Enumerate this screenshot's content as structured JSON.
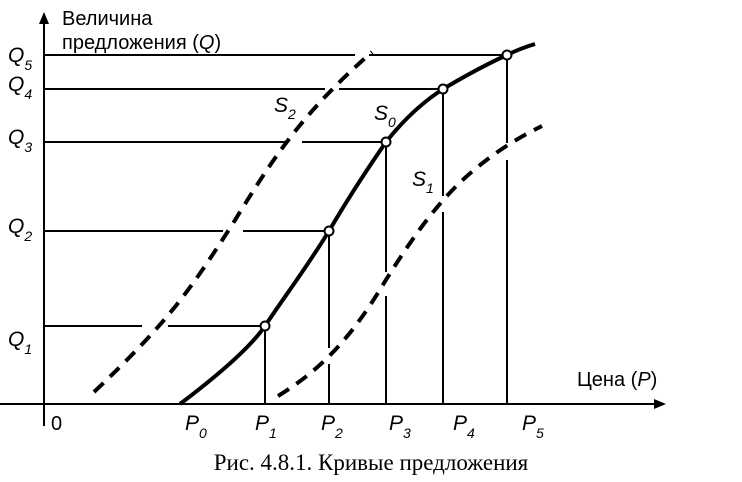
{
  "figure": {
    "y_axis": {
      "line1": "Величина",
      "line2_text": "предложения (",
      "line2_var": "Q",
      "line2_close": ")"
    },
    "x_axis": {
      "text": "Цена (",
      "var": "P",
      "close": ")"
    },
    "origin": "0",
    "q_labels": [
      {
        "base": "Q",
        "sub": "1"
      },
      {
        "base": "Q",
        "sub": "2"
      },
      {
        "base": "Q",
        "sub": "3"
      },
      {
        "base": "Q",
        "sub": "4"
      },
      {
        "base": "Q",
        "sub": "5"
      }
    ],
    "p_labels": [
      {
        "base": "P",
        "sub": "0"
      },
      {
        "base": "P",
        "sub": "1"
      },
      {
        "base": "P",
        "sub": "2"
      },
      {
        "base": "P",
        "sub": "3"
      },
      {
        "base": "P",
        "sub": "4"
      },
      {
        "base": "P",
        "sub": "5"
      }
    ],
    "curves": [
      {
        "base": "S",
        "sub": "2",
        "style": "dashed"
      },
      {
        "base": "S",
        "sub": "0",
        "style": "solid"
      },
      {
        "base": "S",
        "sub": "1",
        "style": "dashed"
      }
    ],
    "caption": "Рис. 4.8.1. Кривые предложения"
  }
}
